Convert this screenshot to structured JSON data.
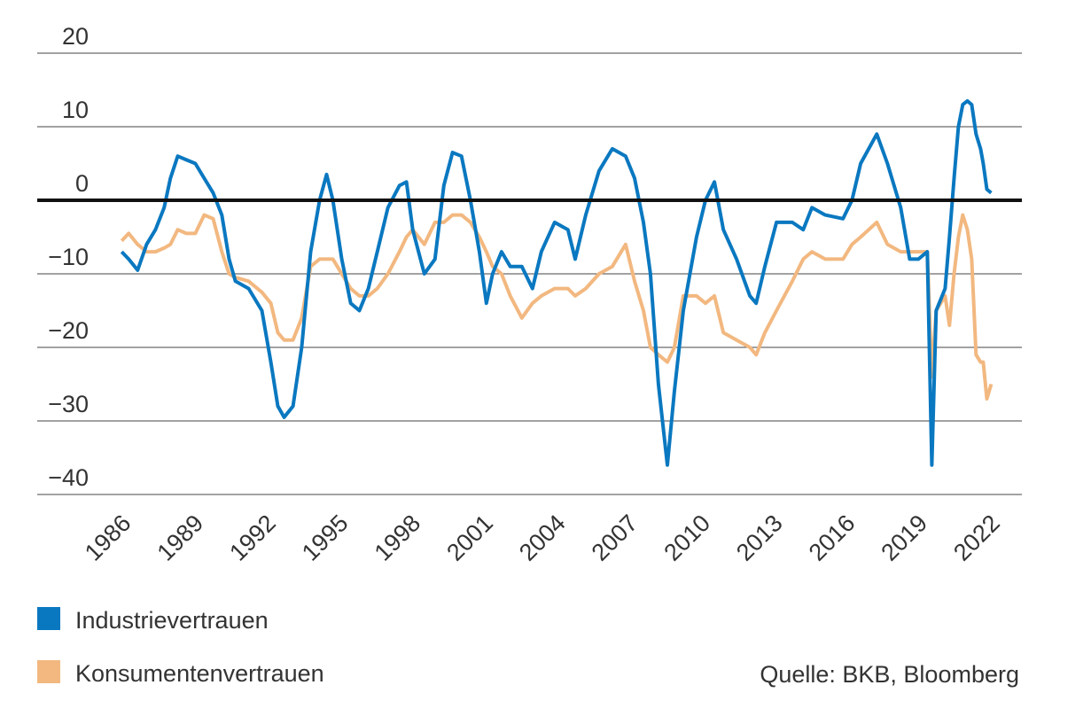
{
  "chart_data": {
    "type": "line",
    "xlim": [
      1982.5,
      2023.3
    ],
    "xticks": [
      1986,
      1989,
      1992,
      1995,
      1998,
      2001,
      2004,
      2007,
      2010,
      2013,
      2016,
      2019,
      2022
    ],
    "ylim": [
      -40,
      20
    ],
    "yticks": [
      {
        "value": -40,
        "label": "−40"
      },
      {
        "value": -30,
        "label": "−30"
      },
      {
        "value": -20,
        "label": "−20"
      },
      {
        "value": -10,
        "label": "−10"
      },
      0,
      10,
      20
    ],
    "grid": true,
    "zero_line": true,
    "x": [
      1986.0,
      1986.29,
      1986.66,
      1987.03,
      1987.4,
      1987.76,
      1988.02,
      1988.32,
      1988.68,
      1989.05,
      1989.42,
      1989.79,
      1990.15,
      1990.45,
      1990.71,
      1991.26,
      1991.81,
      1992.18,
      1992.47,
      1992.73,
      1993.1,
      1993.46,
      1993.83,
      1994.2,
      1994.49,
      1994.75,
      1995.12,
      1995.49,
      1995.85,
      1996.22,
      1996.59,
      1997.03,
      1997.51,
      1997.8,
      1998.06,
      1998.54,
      1998.98,
      1999.35,
      1999.71,
      2000.08,
      2000.45,
      2000.82,
      2001.11,
      2001.37,
      2001.74,
      2002.1,
      2002.58,
      2003.02,
      2003.39,
      2003.94,
      2004.49,
      2004.79,
      2005.23,
      2005.78,
      2006.33,
      2006.88,
      2007.25,
      2007.62,
      2007.91,
      2008.24,
      2008.61,
      2008.9,
      2009.27,
      2009.82,
      2010.19,
      2010.56,
      2010.93,
      2011.48,
      2012.03,
      2012.29,
      2012.65,
      2013.13,
      2013.79,
      2014.24,
      2014.6,
      2015.15,
      2015.89,
      2016.26,
      2016.62,
      2017.29,
      2017.73,
      2018.28,
      2018.65,
      2019.01,
      2019.38,
      2019.57,
      2019.75,
      2020.12,
      2020.3,
      2020.49,
      2020.67,
      2020.85,
      2021.04,
      2021.22,
      2021.4,
      2021.59,
      2021.7,
      2021.85,
      2022.03
    ],
    "series": [
      {
        "name": "Industrievertrauen",
        "color": "#0a78c0",
        "values": [
          -7,
          -8,
          -9.5,
          -6,
          -4,
          -1,
          3,
          6,
          5.5,
          5,
          3,
          1,
          -2,
          -8,
          -11,
          -12,
          -15,
          -22,
          -28,
          -29.5,
          -28,
          -20,
          -7,
          0,
          3.5,
          0,
          -8,
          -14,
          -15,
          -12,
          -7,
          -1,
          2,
          2.5,
          -4,
          -10,
          -8,
          2,
          6.5,
          6,
          0,
          -7,
          -14,
          -10,
          -7,
          -9,
          -9,
          -12,
          -7,
          -3,
          -4,
          -8,
          -2,
          4,
          7,
          6,
          3,
          -3,
          -10,
          -25,
          -36,
          -26,
          -15,
          -5,
          0,
          2.5,
          -4,
          -8,
          -13,
          -14,
          -9,
          -3,
          -3,
          -4,
          -1,
          -2,
          -2.5,
          0,
          5,
          9,
          5,
          -1,
          -8,
          -8,
          -7,
          -36,
          -15,
          -12,
          -5,
          3,
          10,
          13,
          13.5,
          13,
          9,
          7,
          5,
          1.5,
          1
        ]
      },
      {
        "name": "Konsumentenvertrauen",
        "color": "#f2b880",
        "values": [
          -5.5,
          -4.5,
          -6,
          -7,
          -7,
          -6.5,
          -6,
          -4,
          -4.5,
          -4.5,
          -2,
          -2.5,
          -7,
          -10,
          -10.5,
          -11,
          -12.5,
          -14,
          -18,
          -19,
          -19,
          -16,
          -9,
          -8,
          -8,
          -8,
          -10,
          -12,
          -13,
          -13,
          -12,
          -10,
          -7,
          -5,
          -4,
          -6,
          -3,
          -3,
          -2,
          -2,
          -3,
          -5,
          -7,
          -9,
          -10,
          -13,
          -16,
          -14,
          -13,
          -12,
          -12,
          -13,
          -12,
          -10,
          -9,
          -6,
          -11,
          -15,
          -20,
          -21,
          -22,
          -20,
          -13,
          -13,
          -14,
          -13,
          -18,
          -19,
          -20,
          -21,
          -18,
          -15,
          -11,
          -8,
          -7,
          -8,
          -8,
          -6,
          -5,
          -3,
          -6,
          -7,
          -7,
          -7,
          -7,
          -24,
          -15,
          -13,
          -17,
          -10,
          -5,
          -2,
          -4,
          -8,
          -21,
          -22,
          -22,
          -27,
          -25
        ]
      }
    ],
    "source": "Quelle: BKB, Bloomberg"
  }
}
